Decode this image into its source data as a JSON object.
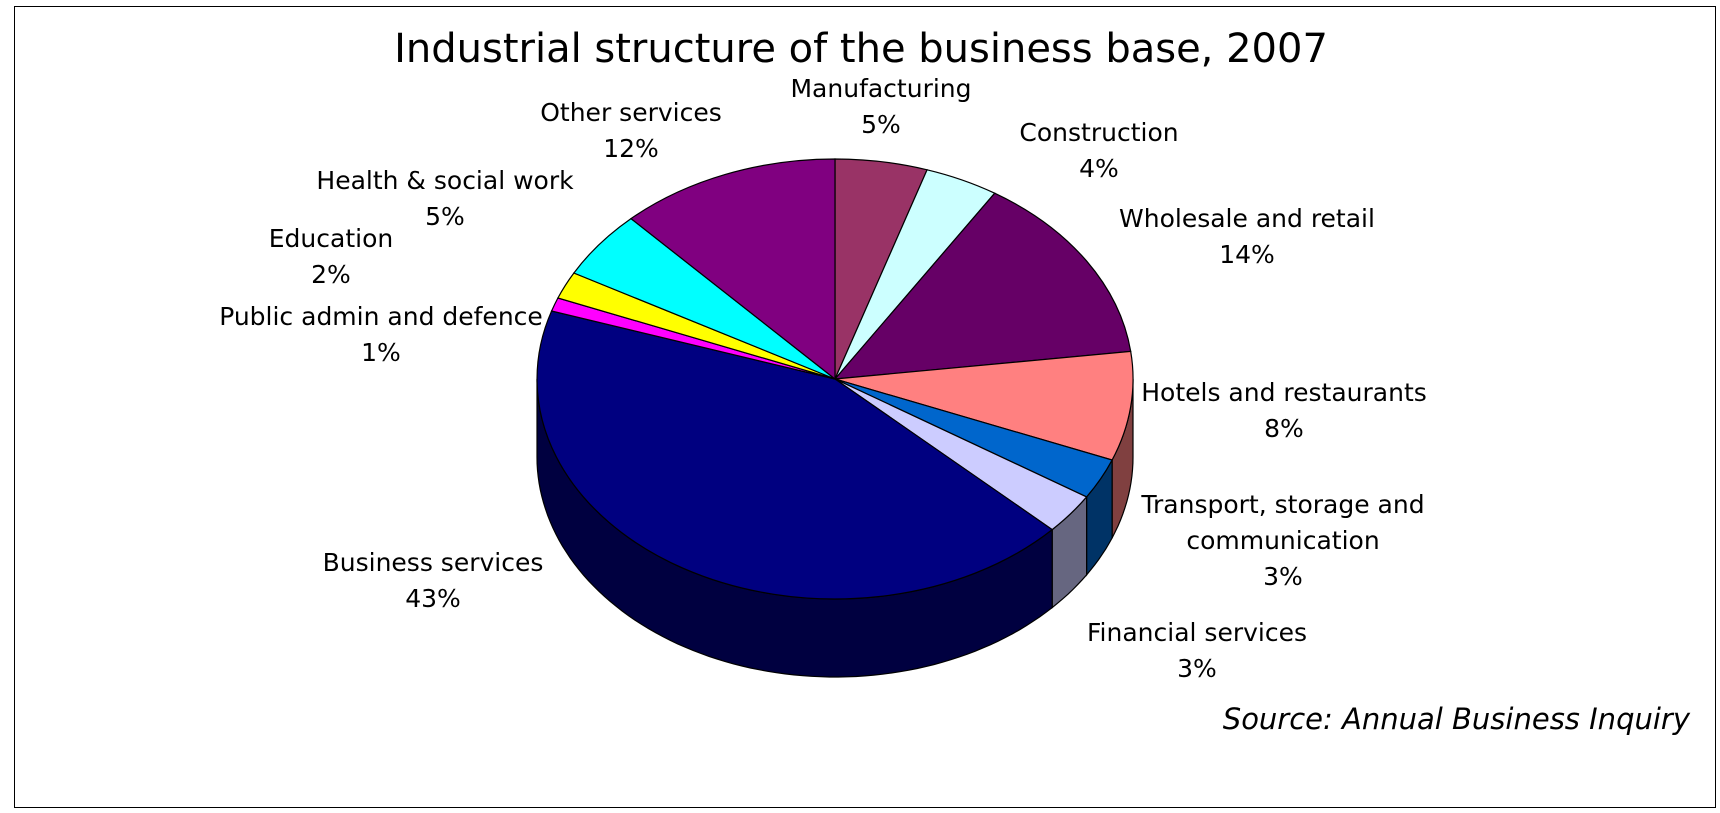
{
  "chart_data": {
    "type": "pie",
    "title": "Industrial structure of the business base, 2007",
    "source": "Source: Annual Business Inquiry",
    "slices": [
      {
        "name": "Manufacturing",
        "value": 5,
        "label_lines": [
          "Manufacturing"
        ],
        "pct_label": "5%",
        "color": "#993366"
      },
      {
        "name": "Construction",
        "value": 4,
        "label_lines": [
          "Construction"
        ],
        "pct_label": "4%",
        "color": "#CCFFFF"
      },
      {
        "name": "Wholesale and retail",
        "value": 14,
        "label_lines": [
          "Wholesale and retail"
        ],
        "pct_label": "14%",
        "color": "#660066"
      },
      {
        "name": "Hotels and restaurants",
        "value": 8,
        "label_lines": [
          "Hotels and restaurants"
        ],
        "pct_label": "8%",
        "color": "#FF8080"
      },
      {
        "name": "Transport, storage and communication",
        "value": 3,
        "label_lines": [
          "Transport, storage and",
          "communication"
        ],
        "pct_label": "3%",
        "color": "#0066CC"
      },
      {
        "name": "Financial services",
        "value": 3,
        "label_lines": [
          "Financial services"
        ],
        "pct_label": "3%",
        "color": "#CCCCFF"
      },
      {
        "name": "Business services",
        "value": 43,
        "label_lines": [
          "Business services"
        ],
        "pct_label": "43%",
        "color": "#000080"
      },
      {
        "name": "Public admin and defence",
        "value": 1,
        "label_lines": [
          "Public admin and defence"
        ],
        "pct_label": "1%",
        "color": "#FF00FF"
      },
      {
        "name": "Education",
        "value": 2,
        "label_lines": [
          "Education"
        ],
        "pct_label": "2%",
        "color": "#FFFF00"
      },
      {
        "name": "Health & social work",
        "value": 5,
        "label_lines": [
          "Health & social work"
        ],
        "pct_label": "5%",
        "color": "#00FFFF"
      },
      {
        "name": "Other services",
        "value": 12,
        "label_lines": [
          "Other services"
        ],
        "pct_label": "12%",
        "color": "#800080"
      }
    ]
  }
}
